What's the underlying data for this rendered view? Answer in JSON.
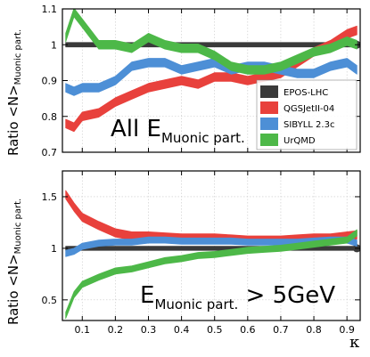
{
  "chart_data": [
    {
      "type": "area",
      "ylabel": "Ratio <N>",
      "ylabel_sub": "Muonic part.",
      "annotation": "All E",
      "annotation_sub": "Muonic part.",
      "xlim": [
        0.04,
        0.94
      ],
      "ylim": [
        0.7,
        1.1
      ],
      "xticks": [
        "0.1",
        "0.2",
        "0.3",
        "0.4",
        "0.5",
        "0.6",
        "0.7",
        "0.8",
        "0.9"
      ],
      "yticks": [
        {
          "value": 0.7,
          "label": "0.7"
        },
        {
          "value": 0.8,
          "label": "0.8"
        },
        {
          "value": 0.9,
          "label": "0.9"
        },
        {
          "value": 1.0,
          "label": "1"
        },
        {
          "value": 1.1,
          "label": "1.1"
        }
      ],
      "grid": true,
      "legend_position": "bottom-right",
      "legend": [
        "EPOS-LHC",
        "QGSJetII-04",
        "SIBYLL 2.3c",
        "UrQMD"
      ],
      "x": [
        0.05,
        0.075,
        0.1,
        0.15,
        0.2,
        0.25,
        0.3,
        0.35,
        0.4,
        0.45,
        0.5,
        0.55,
        0.6,
        0.65,
        0.7,
        0.75,
        0.8,
        0.85,
        0.9,
        0.93
      ],
      "series": [
        {
          "name": "EPOS-LHC",
          "color": "#3a3a3a",
          "values": [
            1.0,
            1.0,
            1.0,
            1.0,
            1.0,
            1.0,
            1.0,
            1.0,
            1.0,
            1.0,
            1.0,
            1.0,
            1.0,
            1.0,
            1.0,
            1.0,
            1.0,
            1.0,
            1.0,
            1.0
          ],
          "band": 0.006
        },
        {
          "name": "QGSJetII-04",
          "color": "#e8413c",
          "values": [
            0.78,
            0.77,
            0.8,
            0.81,
            0.84,
            0.86,
            0.88,
            0.89,
            0.9,
            0.89,
            0.91,
            0.91,
            0.9,
            0.91,
            0.92,
            0.95,
            0.98,
            1.0,
            1.03,
            1.04
          ],
          "band": 0.012
        },
        {
          "name": "SIBYLL 2.3c",
          "color": "#4d8fd6",
          "values": [
            0.88,
            0.87,
            0.88,
            0.88,
            0.9,
            0.94,
            0.95,
            0.95,
            0.93,
            0.94,
            0.95,
            0.93,
            0.94,
            0.94,
            0.93,
            0.92,
            0.92,
            0.94,
            0.95,
            0.93
          ],
          "band": 0.012
        },
        {
          "name": "UrQMD",
          "color": "#4db848",
          "values": [
            1.02,
            1.09,
            1.06,
            1.0,
            1.0,
            0.99,
            1.02,
            1.0,
            0.99,
            0.99,
            0.97,
            0.94,
            0.93,
            0.93,
            0.94,
            0.96,
            0.98,
            0.99,
            1.01,
            1.0
          ],
          "band": 0.012
        }
      ]
    },
    {
      "type": "area",
      "ylabel": "Ratio <N>",
      "ylabel_sub": "Muonic part.",
      "annotation": "E",
      "annotation_sub": "Muonic part.",
      "annotation_suffix": " > 5GeV",
      "xlabel": "κ",
      "xlim": [
        0.04,
        0.94
      ],
      "ylim": [
        0.3,
        1.75
      ],
      "xticks": [
        "0.1",
        "0.2",
        "0.3",
        "0.4",
        "0.5",
        "0.6",
        "0.7",
        "0.8",
        "0.9"
      ],
      "yticks": [
        {
          "value": 0.5,
          "label": "0.5"
        },
        {
          "value": 1.0,
          "label": "1"
        },
        {
          "value": 1.5,
          "label": "1.5"
        }
      ],
      "grid": true,
      "x": [
        0.05,
        0.075,
        0.1,
        0.15,
        0.2,
        0.25,
        0.3,
        0.35,
        0.4,
        0.45,
        0.5,
        0.55,
        0.6,
        0.65,
        0.7,
        0.75,
        0.8,
        0.85,
        0.9,
        0.93
      ],
      "series": [
        {
          "name": "EPOS-LHC",
          "color": "#3a3a3a",
          "values": [
            1.0,
            1.0,
            1.0,
            1.0,
            1.0,
            1.0,
            1.0,
            1.0,
            1.0,
            1.0,
            1.0,
            1.0,
            1.0,
            1.0,
            1.0,
            1.0,
            1.0,
            1.0,
            1.0,
            1.0
          ],
          "band": 0.02
        },
        {
          "name": "QGSJetII-04",
          "color": "#e8413c",
          "values": [
            1.52,
            1.4,
            1.3,
            1.22,
            1.15,
            1.12,
            1.12,
            1.11,
            1.1,
            1.1,
            1.1,
            1.09,
            1.08,
            1.08,
            1.08,
            1.09,
            1.1,
            1.1,
            1.12,
            1.13
          ],
          "band": 0.04
        },
        {
          "name": "SIBYLL 2.3c",
          "color": "#4d8fd6",
          "values": [
            0.95,
            0.97,
            1.02,
            1.05,
            1.06,
            1.06,
            1.08,
            1.08,
            1.07,
            1.07,
            1.07,
            1.07,
            1.06,
            1.06,
            1.06,
            1.06,
            1.07,
            1.08,
            1.08,
            1.05
          ],
          "band": 0.03
        },
        {
          "name": "UrQMD",
          "color": "#4db848",
          "values": [
            0.35,
            0.55,
            0.65,
            0.72,
            0.78,
            0.8,
            0.84,
            0.88,
            0.9,
            0.93,
            0.94,
            0.96,
            0.98,
            0.99,
            1.0,
            1.02,
            1.04,
            1.06,
            1.08,
            1.15
          ],
          "band": 0.03
        }
      ]
    }
  ]
}
